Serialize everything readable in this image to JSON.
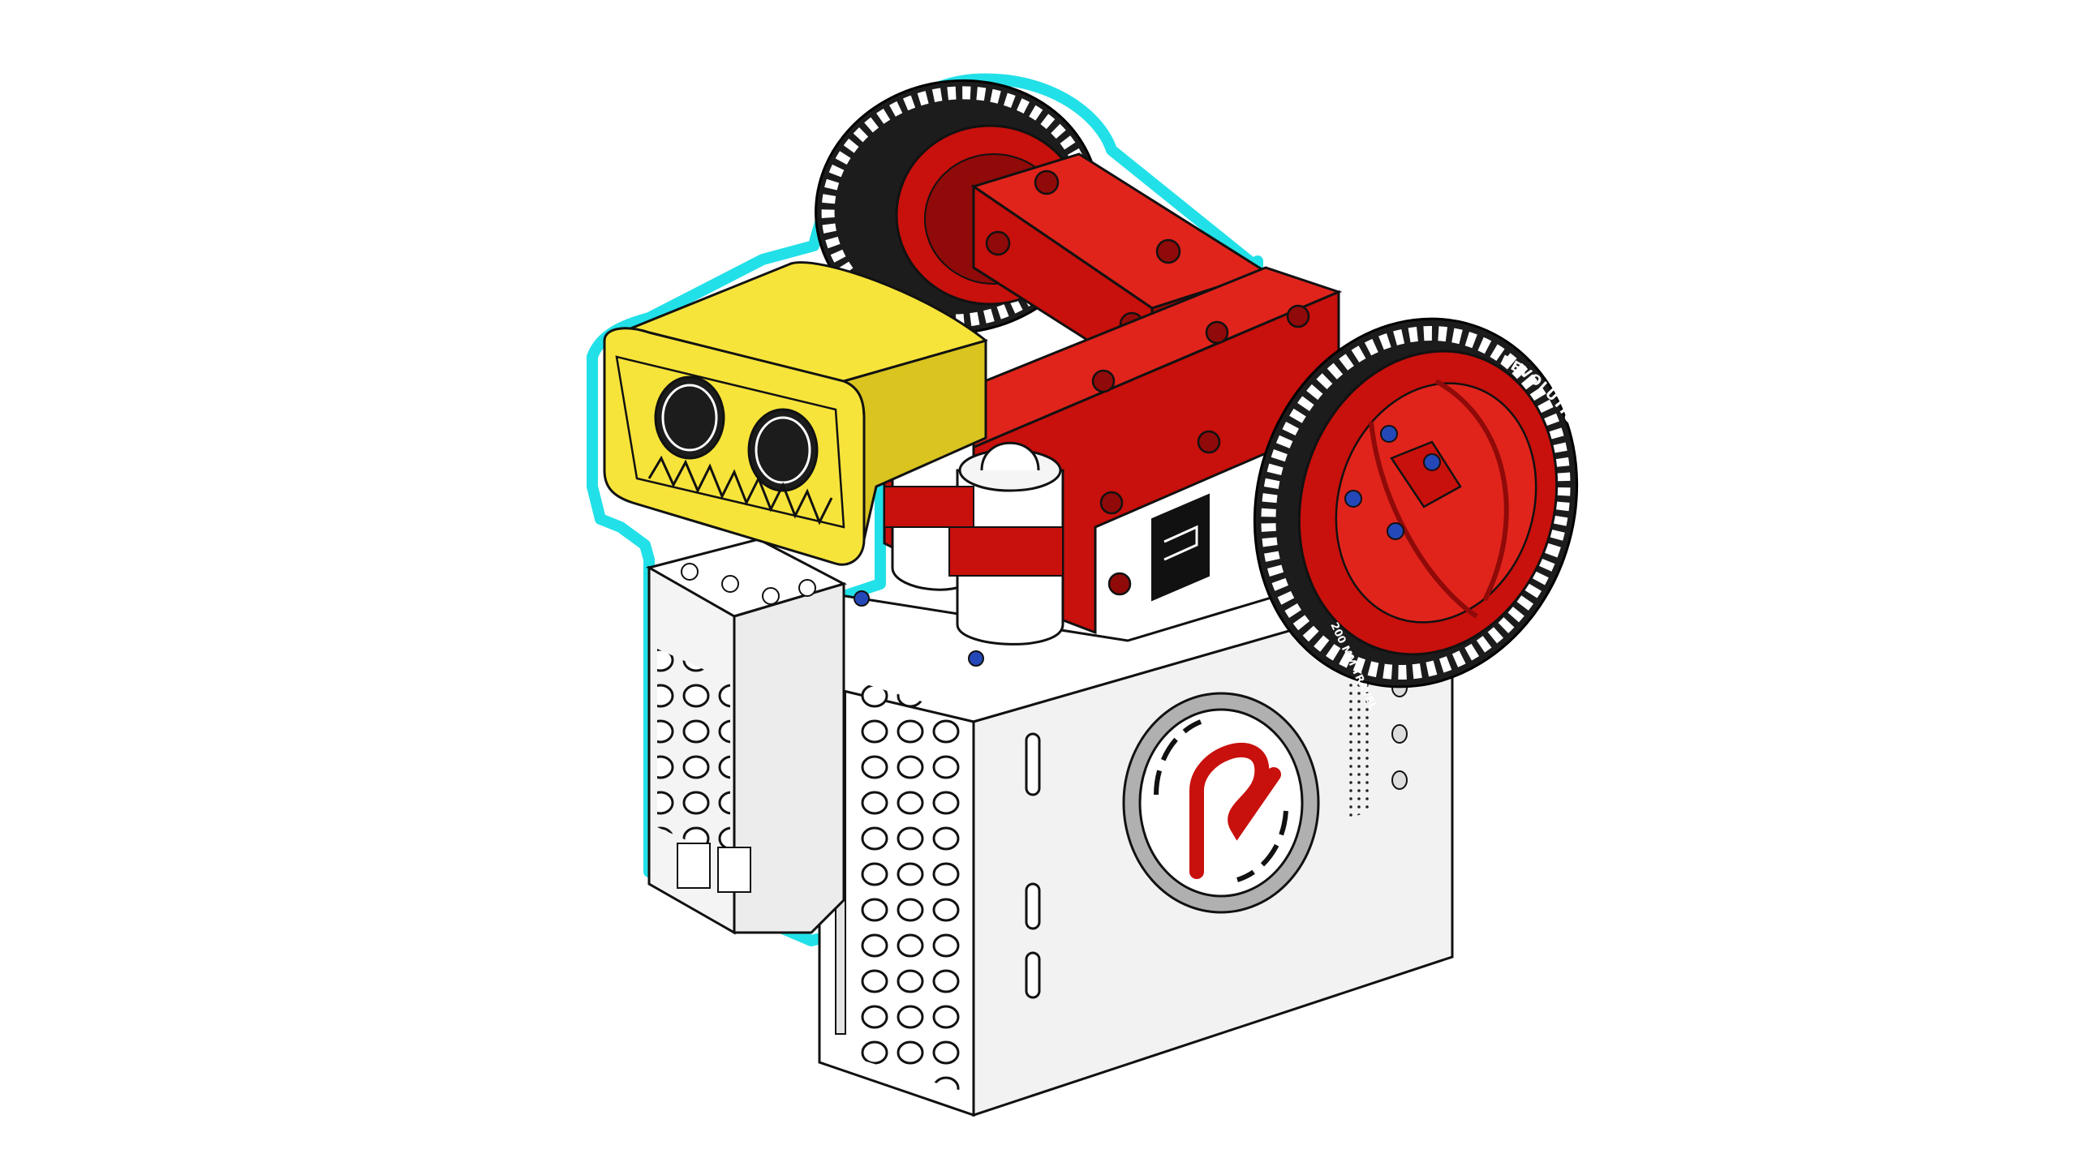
{
  "scene": {
    "subject": "robot-assembly-render",
    "highlight_target": "ultrasonic-sensor-and-mount"
  },
  "colors": {
    "background": "#ffffff",
    "highlight_outline": "#22e0e8",
    "sensor_yellow": "#f7e43a",
    "sensor_yellow_dark": "#d9c420",
    "frame_red": "#c8100c",
    "frame_red_dark": "#8f0a08",
    "frame_red_light": "#e0241c",
    "hub_white": "#ffffff",
    "hub_gray": "#ededed",
    "hub_shadow": "#d8d8d8",
    "tire_black": "#1c1c1c",
    "tread_white": "#ffffff",
    "hub_rim": "#a8a8a8",
    "screw_blue": "#2448b8",
    "logo_red": "#c8100c",
    "line": "#111111"
  },
  "labels": {
    "wheel_brand": "REVOLUTION ROBOTICS",
    "wheel_spec": "200 MM TRAVEL"
  }
}
